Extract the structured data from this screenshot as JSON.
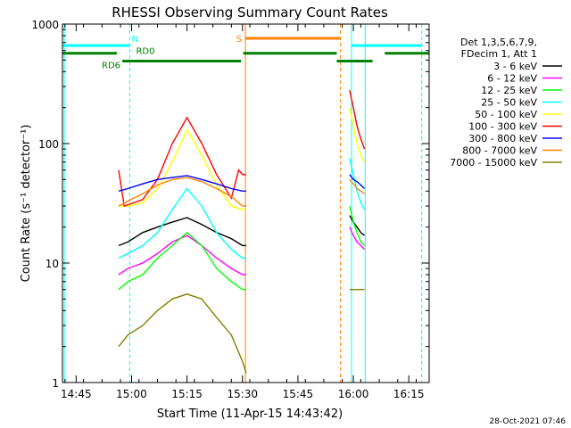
{
  "chart_data": {
    "type": "line",
    "title": "RHESSI Observing Summary Count Rates",
    "xlabel": "Start Time (11-Apr-15 14:43:42)",
    "ylabel": "Count Rate (s⁻¹ detector⁻¹)",
    "y_scale": "log",
    "ylim": [
      1,
      1000
    ],
    "xlim_minutes_after_1443": [
      -1.7,
      97.5
    ],
    "x_ticks": [
      {
        "label": "14:45",
        "min": 2
      },
      {
        "label": "15:00",
        "min": 17
      },
      {
        "label": "15:15",
        "min": 32
      },
      {
        "label": "15:30",
        "min": 47
      },
      {
        "label": "15:45",
        "min": 62
      },
      {
        "label": "16:00",
        "min": 77
      },
      {
        "label": "16:15",
        "min": 92
      }
    ],
    "y_ticks": [
      "1",
      "10",
      "100",
      "1000"
    ],
    "timestamp": "28-Oct-2021 07:46",
    "legend_header": [
      "Det 1,3,5,6,7,9,",
      "FDecim 1, Att 1"
    ],
    "legend_position": "right",
    "series": [
      {
        "name": "3 - 6 keV",
        "color": "#000000",
        "values": [
          [
            13.5,
            14
          ],
          [
            16,
            15
          ],
          [
            20,
            18
          ],
          [
            24,
            20
          ],
          [
            28,
            22
          ],
          [
            32,
            24
          ],
          [
            36,
            21
          ],
          [
            40,
            18
          ],
          [
            44,
            16
          ],
          [
            47,
            14
          ],
          [
            48,
            14
          ],
          [
            76,
            25
          ],
          [
            77,
            22
          ],
          [
            78,
            20
          ],
          [
            79,
            18
          ],
          [
            80,
            17
          ]
        ]
      },
      {
        "name": "6 - 12 keV",
        "color": "#ff00ff",
        "values": [
          [
            13.5,
            8
          ],
          [
            16,
            9
          ],
          [
            20,
            10
          ],
          [
            24,
            12
          ],
          [
            28,
            15
          ],
          [
            32,
            17
          ],
          [
            36,
            14
          ],
          [
            40,
            11
          ],
          [
            44,
            9
          ],
          [
            47,
            8
          ],
          [
            48,
            8
          ],
          [
            76,
            20
          ],
          [
            77,
            17
          ],
          [
            78,
            15
          ],
          [
            79,
            14
          ],
          [
            80,
            13
          ]
        ]
      },
      {
        "name": "12 - 25 keV",
        "color": "#00ff00",
        "values": [
          [
            13.5,
            6
          ],
          [
            16,
            7
          ],
          [
            20,
            8
          ],
          [
            24,
            11
          ],
          [
            28,
            14
          ],
          [
            32,
            18
          ],
          [
            36,
            14
          ],
          [
            40,
            9
          ],
          [
            44,
            7
          ],
          [
            47,
            6
          ],
          [
            48,
            6
          ],
          [
            76,
            30
          ],
          [
            77,
            22
          ],
          [
            78,
            18
          ],
          [
            79,
            15
          ],
          [
            80,
            14
          ]
        ]
      },
      {
        "name": "25 - 50 keV",
        "color": "#00ffff",
        "values": [
          [
            13.5,
            11
          ],
          [
            16,
            12
          ],
          [
            20,
            14
          ],
          [
            24,
            18
          ],
          [
            28,
            28
          ],
          [
            32,
            42
          ],
          [
            36,
            30
          ],
          [
            40,
            18
          ],
          [
            44,
            13
          ],
          [
            47,
            11
          ],
          [
            48,
            11
          ],
          [
            76,
            75
          ],
          [
            77,
            55
          ],
          [
            78,
            40
          ],
          [
            79,
            32
          ],
          [
            80,
            28
          ]
        ]
      },
      {
        "name": "50 - 100 keV",
        "color": "#ffff00",
        "values": [
          [
            13.5,
            30
          ],
          [
            16,
            30
          ],
          [
            20,
            32
          ],
          [
            24,
            42
          ],
          [
            28,
            70
          ],
          [
            32,
            130
          ],
          [
            36,
            80
          ],
          [
            40,
            45
          ],
          [
            44,
            30
          ],
          [
            47,
            28
          ],
          [
            48,
            28
          ],
          [
            76,
            200
          ],
          [
            77,
            140
          ],
          [
            78,
            100
          ],
          [
            79,
            80
          ],
          [
            80,
            70
          ]
        ]
      },
      {
        "name": "100 - 300 keV",
        "color": "#ff0000",
        "values": [
          [
            13.5,
            60
          ],
          [
            15,
            30
          ],
          [
            20,
            34
          ],
          [
            24,
            50
          ],
          [
            28,
            100
          ],
          [
            32,
            165
          ],
          [
            36,
            100
          ],
          [
            40,
            55
          ],
          [
            44,
            35
          ],
          [
            46,
            60
          ],
          [
            47,
            55
          ],
          [
            48,
            55
          ],
          [
            76,
            280
          ],
          [
            77,
            200
          ],
          [
            78,
            140
          ],
          [
            79,
            110
          ],
          [
            80,
            90
          ]
        ]
      },
      {
        "name": "300 - 800 keV",
        "color": "#0000ff",
        "values": [
          [
            13.5,
            40
          ],
          [
            16,
            42
          ],
          [
            20,
            46
          ],
          [
            24,
            50
          ],
          [
            28,
            52
          ],
          [
            32,
            54
          ],
          [
            36,
            50
          ],
          [
            40,
            46
          ],
          [
            44,
            42
          ],
          [
            47,
            40
          ],
          [
            48,
            40
          ],
          [
            76,
            55
          ],
          [
            77,
            50
          ],
          [
            78,
            48
          ],
          [
            79,
            45
          ],
          [
            80,
            42
          ]
        ]
      },
      {
        "name": "800 - 7000 keV",
        "color": "#ff8000",
        "values": [
          [
            13.5,
            30
          ],
          [
            16,
            33
          ],
          [
            20,
            38
          ],
          [
            24,
            45
          ],
          [
            28,
            50
          ],
          [
            32,
            52
          ],
          [
            36,
            48
          ],
          [
            40,
            42
          ],
          [
            44,
            36
          ],
          [
            47,
            30
          ],
          [
            48,
            30
          ],
          [
            76,
            50
          ],
          [
            77,
            46
          ],
          [
            78,
            42
          ],
          [
            79,
            40
          ],
          [
            80,
            38
          ]
        ]
      },
      {
        "name": "7000 - 15000 keV",
        "color": "#808000",
        "values": [
          [
            13.5,
            2
          ],
          [
            16,
            2.5
          ],
          [
            20,
            3
          ],
          [
            24,
            4
          ],
          [
            28,
            5
          ],
          [
            32,
            5.5
          ],
          [
            36,
            5
          ],
          [
            40,
            3.5
          ],
          [
            44,
            2.5
          ],
          [
            47,
            1.5
          ],
          [
            48,
            1.2
          ],
          [
            76,
            6
          ],
          [
            77,
            6
          ],
          [
            78,
            6
          ],
          [
            79,
            6
          ],
          [
            80,
            6
          ]
        ]
      }
    ],
    "flag_annotations": [
      {
        "label": "N",
        "color": "#00ffff"
      },
      {
        "label": "RD0",
        "color": "#008000"
      },
      {
        "label": "RD6",
        "color": "#008000"
      },
      {
        "label": "S",
        "color": "#ff8000"
      }
    ],
    "flag_segments": [
      {
        "flag": "N",
        "color": "#00ffff",
        "level": 660,
        "segments": [
          [
            -1.7,
            16.5
          ],
          [
            76.5,
            95.5
          ]
        ]
      },
      {
        "flag": "RD0",
        "color": "#008000",
        "level": 570,
        "segments": [
          [
            -1.7,
            13.0
          ],
          [
            47.2,
            72.5
          ],
          [
            85.5,
            97.5
          ]
        ]
      },
      {
        "flag": "RD6",
        "color": "#008000",
        "level": 490,
        "segments": [
          [
            14.5,
            46.6
          ],
          [
            72.5,
            82.2
          ]
        ]
      },
      {
        "flag": "S",
        "color": "#ff8000",
        "level": 760,
        "segments": [
          [
            47.8,
            73.5
          ]
        ]
      }
    ],
    "vertical_markers": [
      {
        "min": -1.2,
        "color": "#00ffff",
        "style": "solid"
      },
      {
        "min": 16.5,
        "color": "#00ffff",
        "style": "dashed"
      },
      {
        "min": 47.8,
        "color": "#ff8000",
        "style": "solid"
      },
      {
        "min": 73.5,
        "color": "#ff8000",
        "style": "dashed"
      },
      {
        "min": 76.5,
        "color": "#00ffff",
        "style": "solid"
      },
      {
        "min": 80.2,
        "color": "#00ffff",
        "style": "solid"
      },
      {
        "min": 95.5,
        "color": "#00ffff",
        "style": "dashed"
      }
    ]
  }
}
